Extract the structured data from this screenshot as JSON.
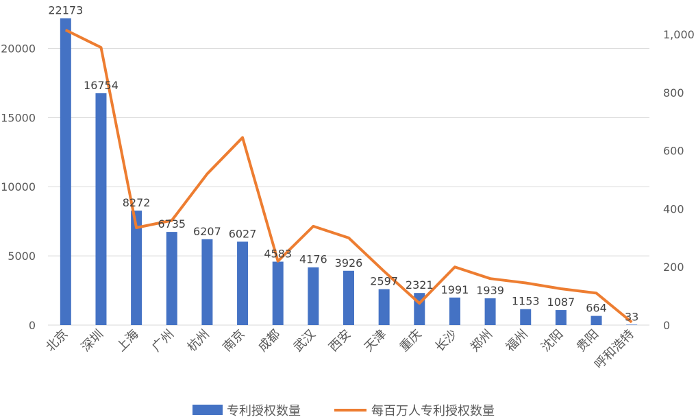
{
  "chart_data": {
    "type": "bar",
    "categories": [
      "北京",
      "深圳",
      "上海",
      "广州",
      "杭州",
      "南京",
      "成都",
      "武汉",
      "西安",
      "天津",
      "重庆",
      "长沙",
      "郑州",
      "福州",
      "沈阳",
      "贵阳",
      "呼和浩特"
    ],
    "series": [
      {
        "name": "专利授权数量",
        "type": "bar",
        "axis": "left",
        "color": "#4472C4",
        "values": [
          22173,
          16754,
          8272,
          6735,
          6207,
          6027,
          4583,
          4176,
          3926,
          2597,
          2321,
          1991,
          1939,
          1153,
          1087,
          664,
          33
        ]
      },
      {
        "name": "每百万人专利授权数量",
        "type": "line",
        "axis": "right",
        "color": "#ED7D31",
        "values": [
          1015,
          955,
          335,
          360,
          520,
          645,
          220,
          340,
          300,
          185,
          75,
          200,
          160,
          145,
          125,
          110,
          10
        ]
      }
    ],
    "y_left": {
      "ylim": [
        0,
        22500
      ],
      "ticks": [
        0,
        5000,
        10000,
        15000,
        20000
      ],
      "tick_labels": [
        "0",
        "5000",
        "10000",
        "15000",
        "20000"
      ]
    },
    "y_right": {
      "ylim": [
        0,
        1071
      ],
      "ticks": [
        0,
        200,
        400,
        600,
        800,
        1000
      ],
      "tick_labels": [
        "0",
        "200",
        "400",
        "600",
        "800",
        "1,000"
      ]
    },
    "grid": true,
    "legend_position": "bottom",
    "legend": [
      "专利授权数量",
      "每百万人专利授权数量"
    ]
  }
}
